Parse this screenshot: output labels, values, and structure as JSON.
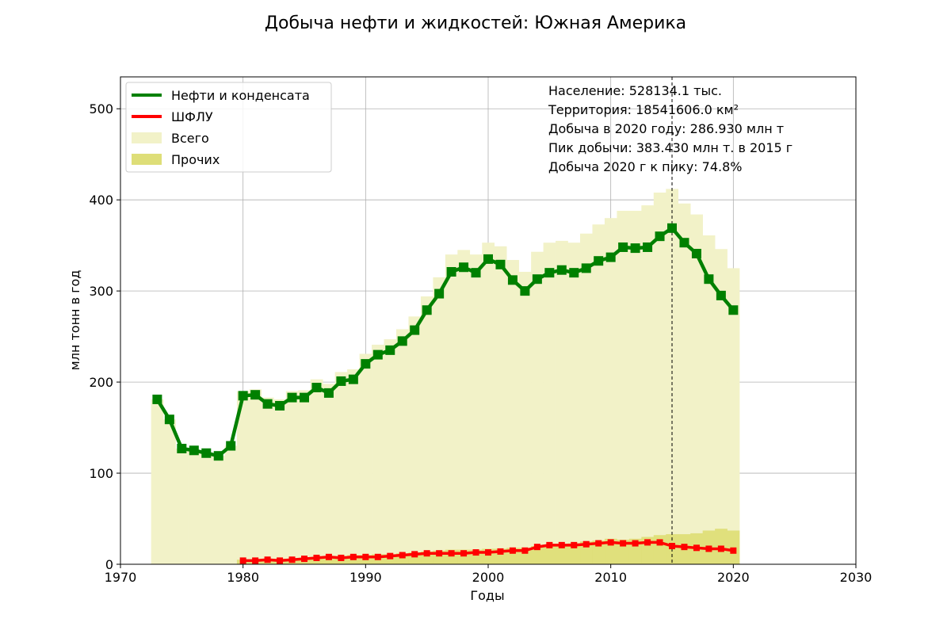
{
  "chart_data": {
    "type": "bar+line",
    "title": "Добыча нефти и жидкостей: Южная Америка",
    "xlabel": "Годы",
    "ylabel": "млн тонн в год",
    "xlim": [
      1970,
      2030
    ],
    "ylim": [
      0,
      535
    ],
    "xticks": [
      "1970",
      "1980",
      "1990",
      "2000",
      "2010",
      "2020",
      "2030"
    ],
    "yticks": [
      "0",
      "100",
      "200",
      "300",
      "400",
      "500"
    ],
    "grid": true,
    "legend_position": "top-left",
    "peak_marker_year": 2015,
    "legend": [
      {
        "label": "Нефти и конденсата",
        "kind": "line",
        "color": "#008000"
      },
      {
        "label": "ШФЛУ",
        "kind": "line",
        "color": "#ff0000"
      },
      {
        "label": "Всего",
        "kind": "patch",
        "color": "#f2f2c8"
      },
      {
        "label": "Прочих",
        "kind": "patch",
        "color": "#dede78"
      }
    ],
    "info_lines": [
      "Население: 528134.1 тыс.",
      "Территория: 18541606.0 км²",
      "Добыча в 2020 году: 286.930 млн т",
      "Пик добычи: 383.430 млн т. в 2015 г",
      "Добыча 2020 г к пику: 74.8%"
    ],
    "series": [
      {
        "name": "Нефти и конденсата",
        "type": "line",
        "color": "#008000",
        "x": [
          1973,
          1974,
          1975,
          1976,
          1977,
          1978,
          1979,
          1980,
          1981,
          1982,
          1983,
          1984,
          1985,
          1986,
          1987,
          1988,
          1989,
          1990,
          1991,
          1992,
          1993,
          1994,
          1995,
          1996,
          1997,
          1998,
          1999,
          2000,
          2001,
          2002,
          2003,
          2004,
          2005,
          2006,
          2007,
          2008,
          2009,
          2010,
          2011,
          2012,
          2013,
          2014,
          2015,
          2016,
          2017,
          2018,
          2019,
          2020
        ],
        "values": [
          181,
          159,
          127,
          125,
          122,
          119,
          130,
          185,
          186,
          176,
          174,
          183,
          183,
          194,
          188,
          201,
          203,
          220,
          230,
          235,
          245,
          257,
          279,
          297,
          321,
          326,
          320,
          335,
          329,
          312,
          300,
          313,
          320,
          323,
          320,
          325,
          333,
          337,
          348,
          347,
          348,
          360,
          369,
          353,
          341,
          313,
          295,
          279
        ]
      },
      {
        "name": "ШФЛУ",
        "type": "line",
        "color": "#ff0000",
        "x": [
          1980,
          1981,
          1982,
          1983,
          1984,
          1985,
          1986,
          1987,
          1988,
          1989,
          1990,
          1991,
          1992,
          1993,
          1994,
          1995,
          1996,
          1997,
          1998,
          1999,
          2000,
          2001,
          2002,
          2003,
          2004,
          2005,
          2006,
          2007,
          2008,
          2009,
          2010,
          2011,
          2012,
          2013,
          2014,
          2015,
          2016,
          2017,
          2018,
          2019,
          2020
        ],
        "values": [
          4,
          4,
          5,
          4,
          5,
          6,
          7,
          8,
          7,
          8,
          8,
          8,
          9,
          10,
          11,
          12,
          12,
          12,
          12,
          13,
          13,
          14,
          15,
          15,
          19,
          21,
          21,
          21,
          22,
          23,
          24,
          23,
          23,
          24,
          24,
          20,
          19,
          18,
          17,
          17,
          15
        ]
      },
      {
        "name": "Всего",
        "type": "bar",
        "color": "#f2f2c8",
        "x": [
          1973,
          1974,
          1975,
          1976,
          1977,
          1978,
          1979,
          1980,
          1981,
          1982,
          1983,
          1984,
          1985,
          1986,
          1987,
          1988,
          1989,
          1990,
          1991,
          1992,
          1993,
          1994,
          1995,
          1996,
          1997,
          1998,
          1999,
          2000,
          2001,
          2002,
          2003,
          2004,
          2005,
          2006,
          2007,
          2008,
          2009,
          2010,
          2011,
          2012,
          2013,
          2014,
          2015,
          2016,
          2017,
          2018,
          2019,
          2020
        ],
        "values": [
          181,
          159,
          127,
          125,
          122,
          119,
          130,
          190,
          192,
          183,
          181,
          190,
          191,
          203,
          198,
          211,
          214,
          231,
          241,
          247,
          258,
          272,
          294,
          315,
          340,
          345,
          340,
          353,
          349,
          334,
          321,
          343,
          353,
          355,
          353,
          363,
          373,
          380,
          388,
          388,
          394,
          408,
          412,
          396,
          384,
          361,
          346,
          325
        ]
      },
      {
        "name": "Прочих",
        "type": "bar",
        "color": "#dede78",
        "x": [
          1980,
          1981,
          1982,
          1983,
          1984,
          1985,
          1986,
          1987,
          1988,
          1989,
          1990,
          1991,
          1992,
          1993,
          1994,
          1995,
          1996,
          1997,
          1998,
          1999,
          2000,
          2001,
          2002,
          2003,
          2004,
          2005,
          2006,
          2007,
          2008,
          2009,
          2010,
          2011,
          2012,
          2013,
          2014,
          2015,
          2016,
          2017,
          2018,
          2019,
          2020
        ],
        "values": [
          5,
          5,
          6,
          6,
          6,
          7,
          8,
          9,
          9,
          10,
          10,
          11,
          11,
          12,
          13,
          14,
          15,
          16,
          16,
          16,
          17,
          17,
          18,
          18,
          20,
          21,
          22,
          23,
          25,
          26,
          28,
          27,
          28,
          30,
          32,
          33,
          33,
          34,
          37,
          39,
          37
        ]
      }
    ]
  }
}
